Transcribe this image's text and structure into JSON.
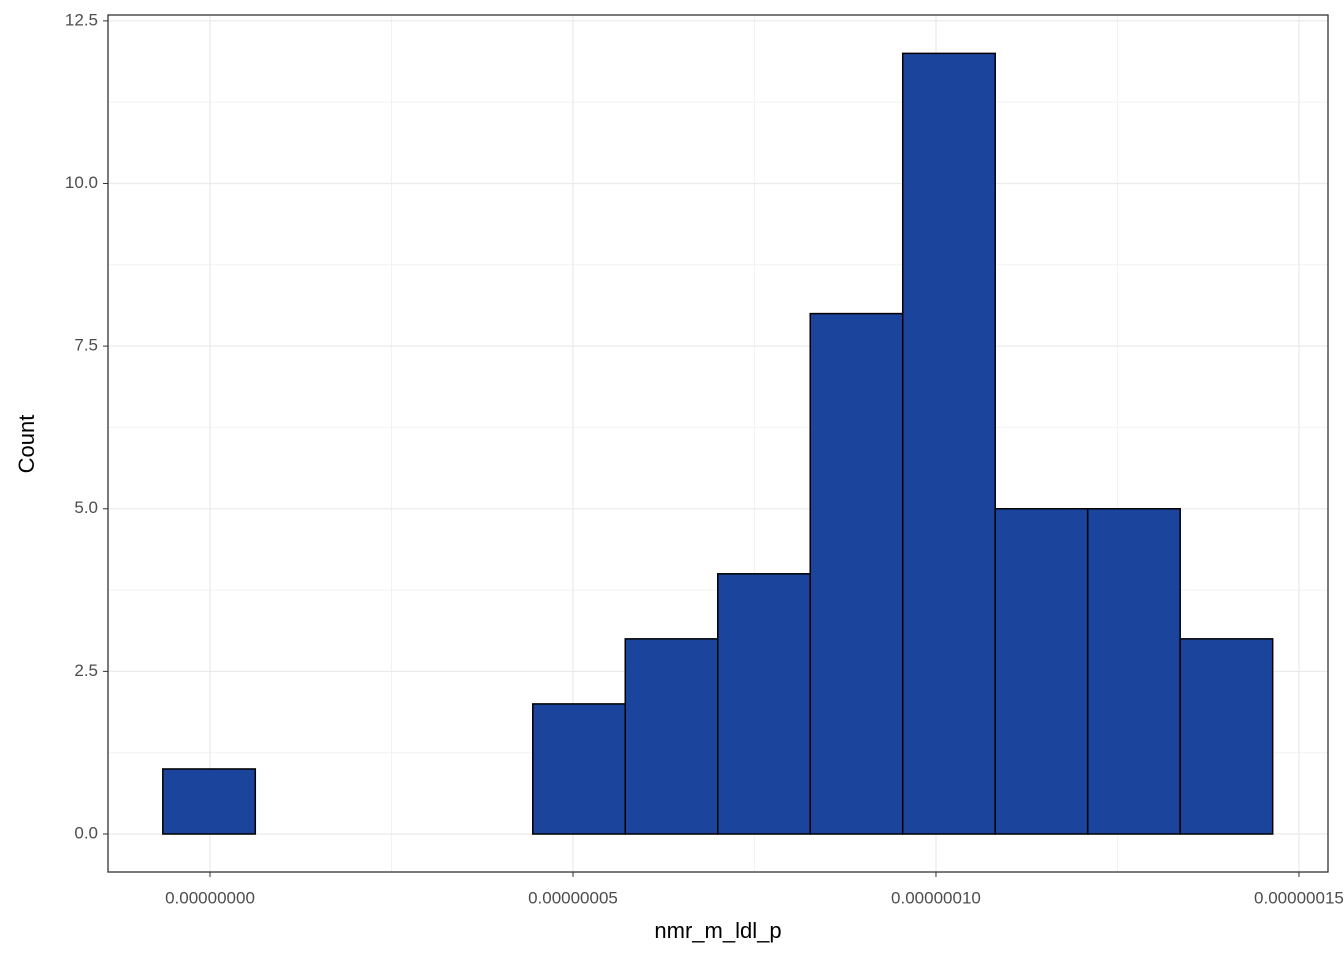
{
  "chart_data": {
    "type": "histogram",
    "x_label": "nmr_m_ldl_p",
    "y_label": "Count",
    "bins": [
      -6.5e-09,
      6.24e-09,
      1.898e-08,
      3.172e-08,
      4.446e-08,
      5.72e-08,
      6.994e-08,
      8.268e-08,
      9.542e-08,
      1.0816e-07,
      1.209e-07,
      1.3364e-07,
      1.4638e-07
    ],
    "values": [
      1,
      0,
      0,
      0,
      2,
      3,
      4,
      8,
      12,
      5,
      5,
      3
    ],
    "color": "#1b449c",
    "xlim": [
      -1.405e-08,
      1.54e-07
    ],
    "xticks": [
      {
        "value": 0,
        "label": "0.00000000"
      },
      {
        "value": 5e-08,
        "label": "0.00000005"
      },
      {
        "value": 1e-07,
        "label": "0.00000010"
      },
      {
        "value": 1.5e-07,
        "label": "0.00000015"
      }
    ],
    "ylim": [
      -0.584,
      12.59
    ],
    "yticks": [
      {
        "value": 0,
        "label": "0.0"
      },
      2.5,
      {
        "value": 5,
        "label": "5.0"
      },
      7.5,
      {
        "value": 10,
        "label": "10.0"
      },
      12.5
    ],
    "grid": true
  }
}
